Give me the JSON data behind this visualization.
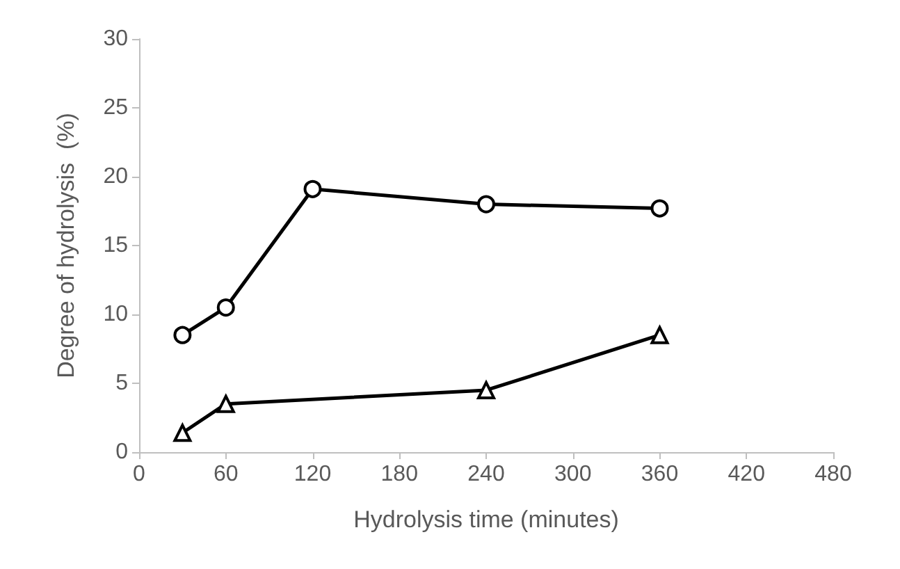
{
  "chart_data": {
    "type": "line",
    "xlabel": "Hydrolysis time (minutes)",
    "ylabel": "Degree of hydrolysis  (%)",
    "x": [
      30,
      60,
      120,
      240,
      360
    ],
    "series": [
      {
        "color": "#000000",
        "marker": "circle",
        "values": [
          8.5,
          10.5,
          19.1,
          18.0,
          17.7
        ]
      },
      {
        "color": "#000000",
        "marker": "triangle",
        "x": [
          30,
          60,
          240,
          360
        ],
        "values": [
          1.4,
          3.5,
          4.5,
          8.5
        ]
      }
    ],
    "xlim": [
      0,
      480
    ],
    "xticks": [
      0,
      60,
      120,
      180,
      240,
      300,
      360,
      420,
      480
    ],
    "ylim": [
      0,
      30
    ],
    "yticks": [
      0,
      5,
      10,
      15,
      20,
      25,
      30
    ],
    "grid": false,
    "line_style": "solid"
  }
}
